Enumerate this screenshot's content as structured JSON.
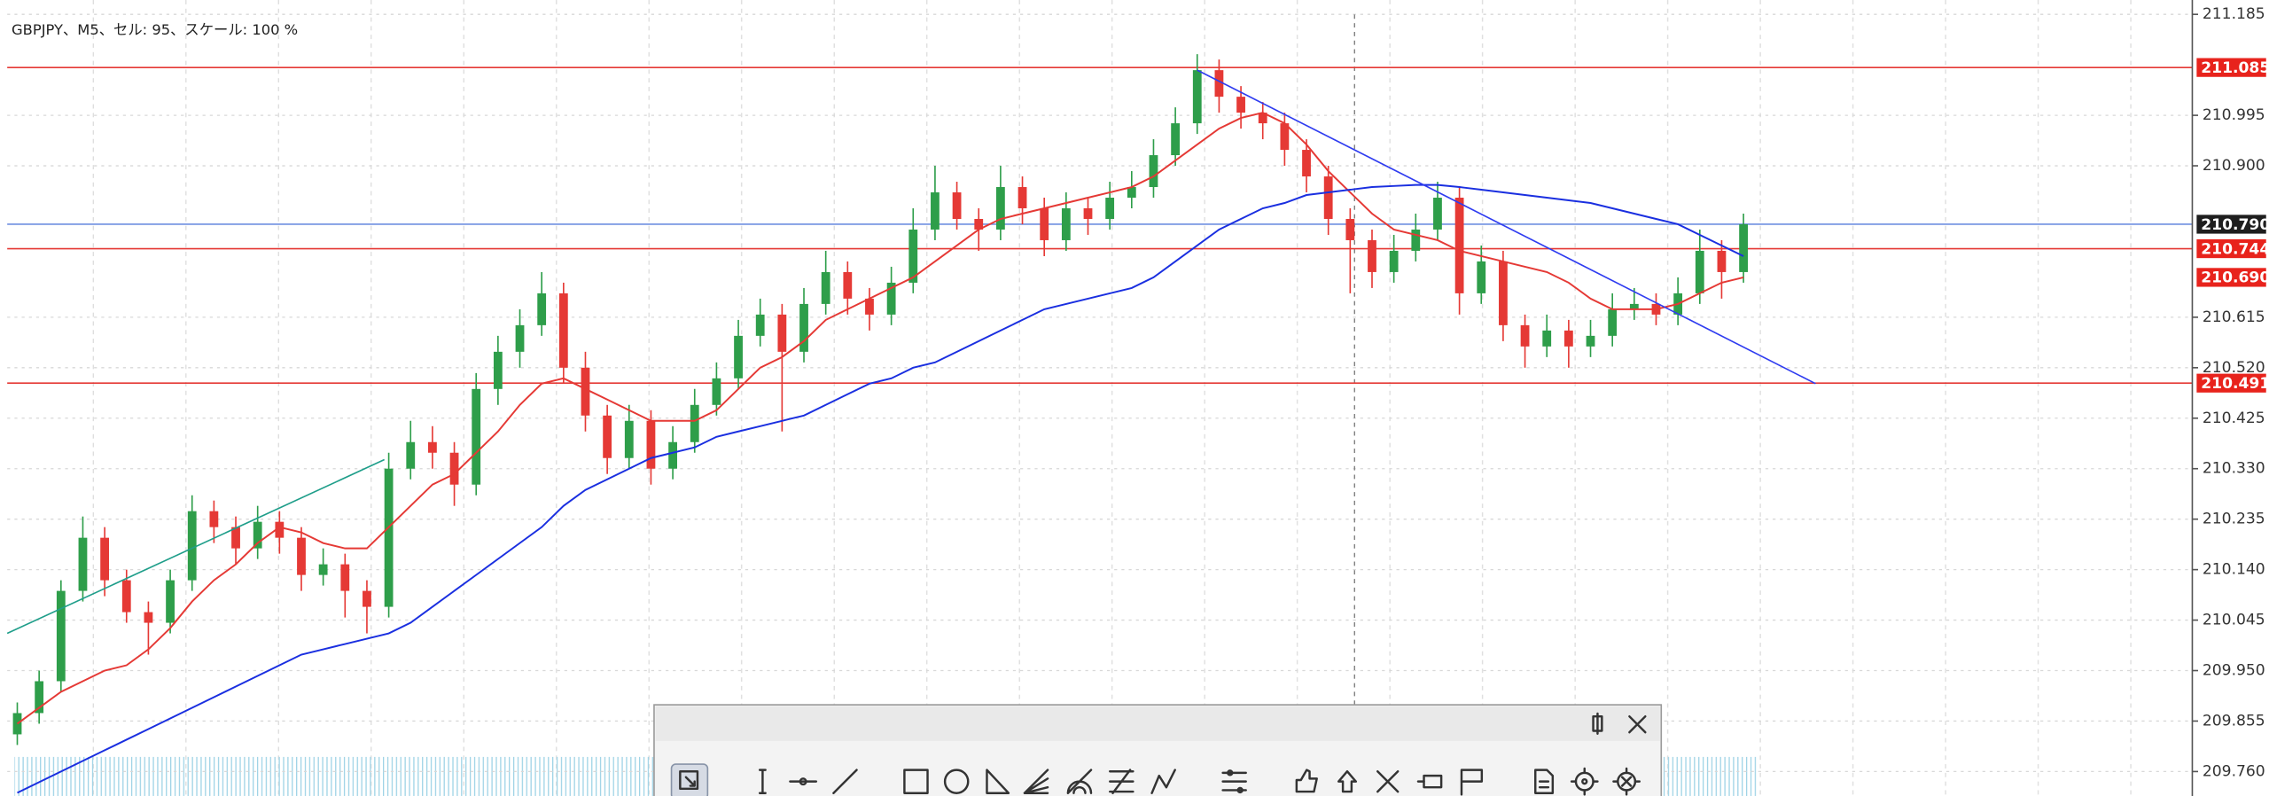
{
  "chart_data": {
    "type": "candlestick",
    "title": "GBPJPY、M5、セル: 95、スケール: 100 %",
    "xlim": [
      -0.46,
      99.54
    ],
    "ylim": [
      209.714,
      211.212
    ],
    "yticks": [
      211.185,
      210.995,
      {
        "value": 210.9,
        "label": "210.900"
      },
      210.615,
      {
        "value": 210.52,
        "label": "210.520"
      },
      210.425,
      {
        "value": 210.33,
        "label": "210.330"
      },
      210.235,
      {
        "value": 210.14,
        "label": "210.140"
      },
      210.045,
      {
        "value": 209.95,
        "label": "209.950"
      },
      209.855,
      {
        "value": 209.76,
        "label": "209.760"
      }
    ],
    "grid": true,
    "up_color": "#2e9e4a",
    "down_color": "#e53935",
    "candles": [
      [
        209.83,
        209.89,
        209.81,
        209.87
      ],
      [
        209.87,
        209.95,
        209.85,
        209.93
      ],
      [
        209.93,
        210.12,
        209.91,
        210.1
      ],
      [
        210.1,
        210.24,
        210.08,
        210.2
      ],
      [
        210.2,
        210.22,
        210.09,
        210.12
      ],
      [
        210.12,
        210.14,
        210.04,
        210.06
      ],
      [
        210.06,
        210.08,
        209.98,
        210.04
      ],
      [
        210.04,
        210.14,
        210.02,
        210.12
      ],
      [
        210.12,
        210.28,
        210.1,
        210.25
      ],
      [
        210.25,
        210.27,
        210.19,
        210.22
      ],
      [
        210.22,
        210.24,
        210.15,
        210.18
      ],
      [
        210.18,
        210.26,
        210.16,
        210.23
      ],
      [
        210.23,
        210.25,
        210.17,
        210.2
      ],
      [
        210.2,
        210.22,
        210.1,
        210.13
      ],
      [
        210.13,
        210.18,
        210.11,
        210.15
      ],
      [
        210.15,
        210.17,
        210.05,
        210.1
      ],
      [
        210.1,
        210.12,
        210.02,
        210.07
      ],
      [
        210.07,
        210.36,
        210.05,
        210.33
      ],
      [
        210.33,
        210.42,
        210.31,
        210.38
      ],
      [
        210.38,
        210.41,
        210.33,
        210.36
      ],
      [
        210.36,
        210.38,
        210.26,
        210.3
      ],
      [
        210.3,
        210.51,
        210.28,
        210.48
      ],
      [
        210.48,
        210.58,
        210.45,
        210.55
      ],
      [
        210.55,
        210.63,
        210.52,
        210.6
      ],
      [
        210.6,
        210.7,
        210.58,
        210.66
      ],
      [
        210.66,
        210.68,
        210.49,
        210.52
      ],
      [
        210.52,
        210.55,
        210.4,
        210.43
      ],
      [
        210.43,
        210.45,
        210.32,
        210.35
      ],
      [
        210.35,
        210.45,
        210.33,
        210.42
      ],
      [
        210.42,
        210.44,
        210.3,
        210.33
      ],
      [
        210.33,
        210.41,
        210.31,
        210.38
      ],
      [
        210.38,
        210.48,
        210.36,
        210.45
      ],
      [
        210.45,
        210.53,
        210.43,
        210.5
      ],
      [
        210.5,
        210.61,
        210.48,
        210.58
      ],
      [
        210.58,
        210.65,
        210.56,
        210.62
      ],
      [
        210.62,
        210.64,
        210.4,
        210.55
      ],
      [
        210.55,
        210.67,
        210.53,
        210.64
      ],
      [
        210.64,
        210.74,
        210.62,
        210.7
      ],
      [
        210.7,
        210.72,
        210.62,
        210.65
      ],
      [
        210.65,
        210.67,
        210.59,
        210.62
      ],
      [
        210.62,
        210.71,
        210.6,
        210.68
      ],
      [
        210.68,
        210.82,
        210.66,
        210.78
      ],
      [
        210.78,
        210.9,
        210.76,
        210.85
      ],
      [
        210.85,
        210.87,
        210.78,
        210.8
      ],
      [
        210.8,
        210.82,
        210.74,
        210.78
      ],
      [
        210.78,
        210.9,
        210.76,
        210.86
      ],
      [
        210.86,
        210.88,
        210.79,
        210.82
      ],
      [
        210.82,
        210.84,
        210.73,
        210.76
      ],
      [
        210.76,
        210.85,
        210.74,
        210.82
      ],
      [
        210.82,
        210.84,
        210.77,
        210.8
      ],
      [
        210.8,
        210.87,
        210.78,
        210.84
      ],
      [
        210.84,
        210.89,
        210.82,
        210.86
      ],
      [
        210.86,
        210.95,
        210.84,
        210.92
      ],
      [
        210.92,
        211.01,
        210.9,
        210.98
      ],
      [
        210.98,
        211.11,
        210.96,
        211.08
      ],
      [
        211.08,
        211.1,
        211.0,
        211.03
      ],
      [
        211.03,
        211.05,
        210.97,
        211.0
      ],
      [
        211.0,
        211.02,
        210.95,
        210.98
      ],
      [
        210.98,
        211.0,
        210.9,
        210.93
      ],
      [
        210.93,
        210.95,
        210.85,
        210.88
      ],
      [
        210.88,
        210.9,
        210.77,
        210.8
      ],
      [
        210.8,
        210.82,
        210.66,
        210.76
      ],
      [
        210.76,
        210.78,
        210.67,
        210.7
      ],
      [
        210.7,
        210.77,
        210.68,
        210.74
      ],
      [
        210.74,
        210.81,
        210.72,
        210.78
      ],
      [
        210.78,
        210.87,
        210.76,
        210.84
      ],
      [
        210.84,
        210.86,
        210.62,
        210.66
      ],
      [
        210.66,
        210.75,
        210.64,
        210.72
      ],
      [
        210.72,
        210.74,
        210.57,
        210.6
      ],
      [
        210.6,
        210.62,
        210.52,
        210.56
      ],
      [
        210.56,
        210.62,
        210.54,
        210.59
      ],
      [
        210.59,
        210.61,
        210.52,
        210.56
      ],
      [
        210.56,
        210.61,
        210.54,
        210.58
      ],
      [
        210.58,
        210.66,
        210.56,
        210.63
      ],
      [
        210.63,
        210.67,
        210.61,
        210.64
      ],
      [
        210.64,
        210.66,
        210.6,
        210.62
      ],
      [
        210.62,
        210.69,
        210.6,
        210.66
      ],
      [
        210.66,
        210.78,
        210.64,
        210.74
      ],
      [
        210.74,
        210.76,
        210.65,
        210.7
      ],
      [
        210.7,
        210.81,
        210.68,
        210.79
      ]
    ],
    "series": [
      {
        "color": "#e53935",
        "values": [
          209.85,
          209.88,
          209.91,
          209.93,
          209.95,
          209.96,
          209.99,
          210.03,
          210.08,
          210.12,
          210.15,
          210.19,
          210.22,
          210.21,
          210.19,
          210.18,
          210.18,
          210.22,
          210.26,
          210.3,
          210.32,
          210.36,
          210.4,
          210.45,
          210.49,
          210.5,
          210.48,
          210.46,
          210.44,
          210.42,
          210.42,
          210.42,
          210.44,
          210.48,
          210.52,
          210.54,
          210.57,
          210.61,
          210.63,
          210.65,
          210.67,
          210.69,
          210.72,
          210.75,
          210.78,
          210.8,
          210.81,
          210.82,
          210.83,
          210.84,
          210.85,
          210.86,
          210.88,
          210.91,
          210.94,
          210.97,
          210.99,
          211.0,
          210.98,
          210.94,
          210.89,
          210.85,
          210.81,
          210.78,
          210.77,
          210.76,
          210.74,
          210.73,
          210.72,
          210.71,
          210.7,
          210.68,
          210.65,
          210.63,
          210.63,
          210.63,
          210.64,
          210.66,
          210.68,
          210.69
        ]
      },
      {
        "color": "#1a2fe0",
        "values": [
          209.72,
          209.74,
          209.76,
          209.78,
          209.8,
          209.82,
          209.84,
          209.86,
          209.88,
          209.9,
          209.92,
          209.94,
          209.96,
          209.98,
          209.99,
          210.0,
          210.01,
          210.02,
          210.04,
          210.07,
          210.1,
          210.13,
          210.16,
          210.19,
          210.22,
          210.26,
          210.29,
          210.31,
          210.33,
          210.35,
          210.36,
          210.37,
          210.39,
          210.4,
          210.41,
          210.42,
          210.43,
          210.45,
          210.47,
          210.49,
          210.5,
          210.52,
          210.53,
          210.55,
          210.57,
          210.59,
          210.61,
          210.63,
          210.64,
          210.65,
          210.66,
          210.67,
          210.69,
          210.72,
          210.75,
          210.78,
          210.8,
          210.82,
          210.83,
          210.845,
          210.85,
          210.855,
          210.86,
          210.862,
          210.864,
          210.864,
          210.86,
          210.855,
          210.85,
          210.845,
          210.84,
          210.835,
          210.83,
          210.82,
          210.81,
          210.8,
          210.79,
          210.77,
          210.75,
          210.73
        ]
      }
    ],
    "trendlines": [
      {
        "color": "#2f3cf0",
        "x": [
          54,
          82.3
        ],
        "values": [
          211.08,
          210.49
        ]
      },
      {
        "color": "#1f9e8a",
        "x": [
          -0.46,
          16.8
        ],
        "values": [
          210.02,
          210.347
        ]
      }
    ],
    "crosshair_x": 61.2,
    "levels": [
      {
        "value": 211.085,
        "color": "#e53935"
      },
      {
        "value": 210.79,
        "color": "#6f8fe0"
      },
      {
        "value": 210.744,
        "color": "#e53935"
      },
      {
        "value": 210.491,
        "color": "#e53935"
      }
    ],
    "price_labels": [
      {
        "value": 211.085,
        "label": "211.085",
        "color": "#e8231c"
      },
      {
        "value": 210.79,
        "label": "210.790",
        "color": "#1e1e1e"
      },
      {
        "value": 210.744,
        "label": "210.744",
        "color": "#e8231c"
      },
      {
        "value": 210.69,
        "label": "210.690",
        "color": "#e8231c"
      },
      {
        "value": 210.491,
        "label": "210.491",
        "color": "#e8231c"
      }
    ]
  }
}
